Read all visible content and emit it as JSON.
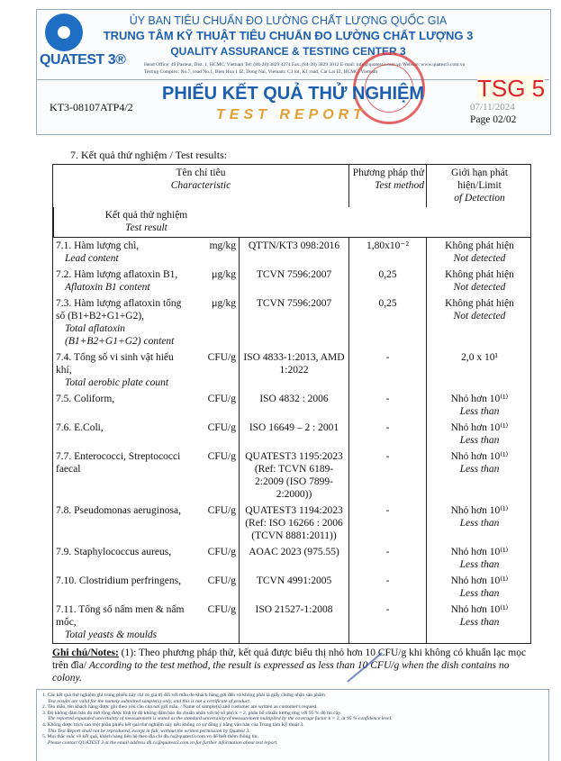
{
  "header": {
    "brand": "QUATEST 3®",
    "line1": "ỦY BAN TIÊU CHUẨN ĐO LƯỜNG CHẤT LƯỢNG QUỐC GIA",
    "line2": "TRUNG TÂM KỸ THUẬT TIÊU CHUẨN ĐO LƯỜNG CHẤT LƯỢNG 3",
    "line3": "QUALITY ASSURANCE & TESTING CENTER 3",
    "head_office": "Head Office: 49 Pasteur, Dist. 1, HCMC, Vietnam   Tel: (84-28) 3829 4274   Fax: (84-28) 3829 3012   E-mail: info@quatest3.com.vn   Website: www.quatest3.com.vn",
    "testing_complex": "Testing Complex: No.7, road No.1, Bien Hoa 1 IZ, Dong Nai, Vietnam; C3 lot, K1 road, Cat Lai IZ, HCMC, Vietnam",
    "report_code": "KT3-08107ATP4/2",
    "title_vi": "PHIẾU KẾT QUẢ THỬ NGHIỆM",
    "title_en": "TEST REPORT",
    "tag": "TSG 5",
    "date": "07/11/2024",
    "page": "Page 02/02",
    "stamp": "TRUNG TÂM KỸ THUẬT TIÊU CHUẨN ĐO LƯỜNG CHẤT LƯỢNG 3"
  },
  "section": "7. Kết quả thử nghiệm / Test results:",
  "columns": [
    {
      "vi": "Tên chỉ tiêu",
      "en": "Characteristic"
    },
    {
      "vi": "Phương pháp thử",
      "en": "Test method"
    },
    {
      "vi": "Giới hạn phát hiện/Limit",
      "en": "of Detection"
    },
    {
      "vi": "Kết quả thử nghiệm",
      "en": "Test result"
    }
  ],
  "rows": [
    {
      "name": "7.1. Hàm lượng chì,",
      "name_en": "Lead content",
      "unit": "mg/kg",
      "method": "QTTN/KT3 098:2016",
      "lod": "1,80x10⁻²",
      "result": "Không phát hiện",
      "result_en": "Not detected"
    },
    {
      "name": "7.2. Hàm lượng aflatoxin B1,",
      "name_en": "Aflatoxin B1 content",
      "unit": "µg/kg",
      "method": "TCVN 7596:2007",
      "lod": "0,25",
      "result": "Không phát hiện",
      "result_en": "Not detected"
    },
    {
      "name": "7.3. Hàm lượng aflatoxin tổng số (B1+B2+G1+G2),",
      "name_en": "Total aflatoxin (B1+B2+G1+G2) content",
      "unit": "µg/kg",
      "method": "TCVN 7596:2007",
      "lod": "0,25",
      "result": "Không phát hiện",
      "result_en": "Not detected"
    },
    {
      "name": "7.4. Tổng số vi sinh vật hiếu khí,",
      "name_en": "Total aerobic plate count",
      "unit": "CFU/g",
      "method": "ISO 4833-1:2013, AMD 1:2022",
      "lod": "-",
      "result": "2,0 x 10¹",
      "result_en": ""
    },
    {
      "name": "7.5. Coliform,",
      "name_en": "",
      "unit": "CFU/g",
      "method": "ISO 4832 : 2006",
      "lod": "-",
      "result": "Nhỏ hơn 10⁽¹⁾",
      "result_en": "Less than"
    },
    {
      "name": "7.6. E.Coli,",
      "name_en": "",
      "unit": "CFU/g",
      "method": "ISO 16649 – 2 : 2001",
      "lod": "-",
      "result": "Nhỏ hơn 10⁽¹⁾",
      "result_en": "Less than"
    },
    {
      "name": "7.7. Enterococci, Streptococci faecal",
      "name_en": "",
      "unit": "CFU/g",
      "method": "QUATEST3 1195:2023 (Ref: TCVN 6189-2:2009 (ISO 7899-2:2000))",
      "lod": "-",
      "result": "Nhỏ hơn 10⁽¹⁾",
      "result_en": "Less than"
    },
    {
      "name": "7.8. Pseudomonas aeruginosa,",
      "name_en": "",
      "unit": "CFU/g",
      "method": "QUATEST3 1194:2023 (Ref: ISO 16266 : 2006 (TCVN 8881:2011))",
      "lod": "-",
      "result": "Nhỏ hơn 10⁽¹⁾",
      "result_en": "Less than"
    },
    {
      "name": "7.9. Staphylococcus aureus,",
      "name_en": "",
      "unit": "CFU/g",
      "method": "AOAC 2023 (975.55)",
      "lod": "-",
      "result": "Nhỏ hơn 10⁽¹⁾",
      "result_en": "Less than"
    },
    {
      "name": "7.10. Clostridium perfringens,",
      "name_en": "",
      "unit": "CFU/g",
      "method": "TCVN 4991:2005",
      "lod": "-",
      "result": "Nhỏ hơn 10⁽¹⁾",
      "result_en": "Less than"
    },
    {
      "name": "7.11. Tổng số nấm men & nấm mốc,",
      "name_en": "Total yeasts & moulds",
      "unit": "CFU/g",
      "method": "ISO 21527-1:2008",
      "lod": "-",
      "result": "Nhỏ hơn 10⁽¹⁾",
      "result_en": "Less than"
    }
  ],
  "notes": {
    "label": "Ghi chú/Notes:",
    "text": "(1): Theo phương pháp thử, kết quả được biểu thị nhỏ hơn 10 CFU/g khi không có khuẩn lạc mọc trên đĩa/",
    "text_en": "According to the test method, the result is expressed as less than 10 CFU/g when the dish contains no colony."
  },
  "footer": [
    "1. Các kết quả thử nghiệm ghi trong phiếu này chỉ có giá trị đối với mẫu do khách hàng gửi đến và không phải là giấy chứng nhận sản phẩm.",
    "Test results are valid for the namely submitted sample(s) only, and this is not a certificate of product.",
    "2. Tên mẫu, tên khách hàng được ghi theo yêu cầu của nơi gửi mẫu. / Name of sample(s) and customer are written as customer's request.",
    "3. Độ không đảm bảo đo mở rộng được tính từ độ không đảm bảo đo chuẩn nhân với hệ số phủ k = 2, phân bố chuẩn tương ứng với 95 % độ tin cậy.",
    "The reported expanded uncertainty of measurement is stated as the standard uncertainty of measurement multiplied by the coverage factor k = 2, at 95 % confidence level.",
    "4. Không được trích sao một phần phiếu kết quả thử nghiệm này nếu không có sự đồng ý bằng văn bản của Trung tâm Kỹ thuật 3.",
    "This Test Report shall not be reproduced, except in full, without the written permission by Quatest 3.",
    "5. Mọi thắc mắc về kết quả, khách hàng liên hệ theo địa chỉ dh.cs@quatest3.com.vn để biết thêm thông tin.",
    "Please contact QUATEST 3 at the email address dh.cs@quatest3.com.vn for further information about test report."
  ]
}
